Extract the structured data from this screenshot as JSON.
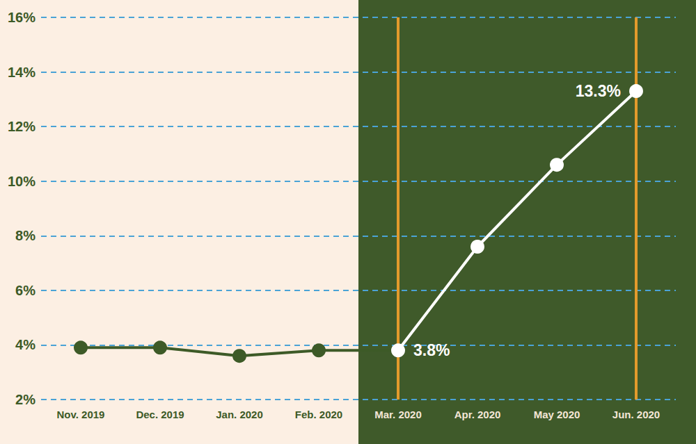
{
  "chart_data": {
    "type": "line",
    "categories": [
      "Nov. 2019",
      "Dec. 2019",
      "Jan. 2020",
      "Feb. 2020",
      "Mar. 2020",
      "Apr. 2020",
      "May 2020",
      "Jun. 2020"
    ],
    "values": [
      3.9,
      3.9,
      3.6,
      3.8,
      3.8,
      7.6,
      10.6,
      13.3
    ],
    "value_labels": [
      null,
      null,
      null,
      null,
      "3.8%",
      null,
      null,
      "13.3%"
    ],
    "colors": [
      "#3d5a27",
      "#3d5a27",
      "#3d5a27",
      "#3d5a27",
      "#ffffff",
      "#ffffff",
      "#ffffff",
      "#ffffff"
    ],
    "ylim": [
      2,
      16
    ],
    "yticks": [
      {
        "value": 2,
        "label": "2%"
      },
      {
        "value": 4,
        "label": "4%"
      },
      {
        "value": 6,
        "label": "6%"
      },
      {
        "value": 8,
        "label": "8%"
      },
      {
        "value": 10,
        "label": "10%"
      },
      {
        "value": 12,
        "label": "12%"
      },
      {
        "value": 14,
        "label": "14%"
      },
      {
        "value": 16,
        "label": "16%"
      }
    ],
    "grid": true,
    "data_labels": true,
    "marker": "circle"
  }
}
